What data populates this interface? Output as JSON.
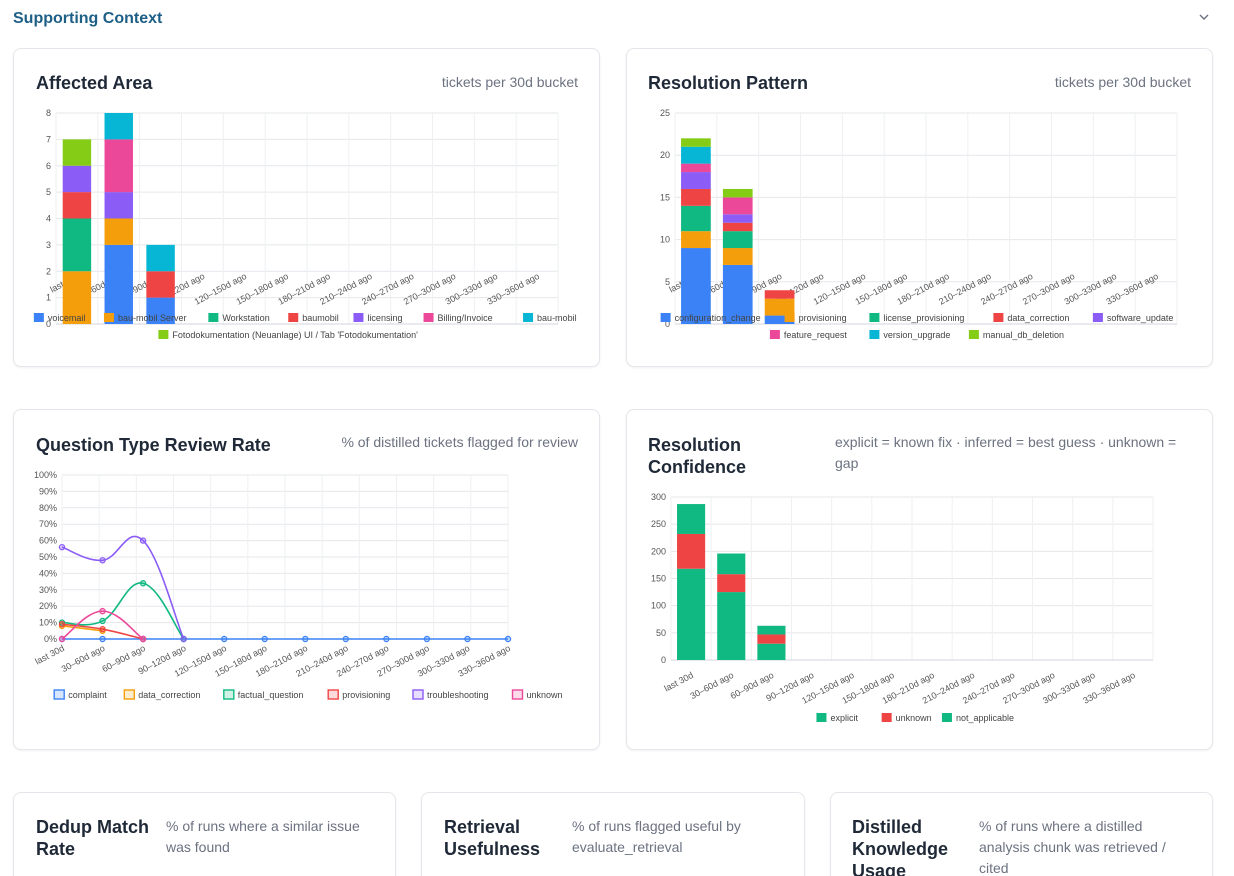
{
  "section": {
    "title": "Supporting Context",
    "toggle_icon": "chevron-down-icon"
  },
  "cards": {
    "affected_area": {
      "title": "Affected Area",
      "subtitle": "tickets per 30d bucket"
    },
    "resolution_pattern": {
      "title": "Resolution Pattern",
      "subtitle": "tickets per 30d bucket"
    },
    "question_type": {
      "title": "Question Type Review Rate",
      "subtitle": "% of distilled tickets flagged for review"
    },
    "resolution_confidence": {
      "title_line1": "Resolution",
      "title_line2": "Confidence",
      "subtitle_line1": "explicit = known fix · inferred = best guess · unknown =",
      "subtitle_line2": "gap"
    },
    "dedup": {
      "title_line1": "Dedup Match",
      "title_line2": "Rate",
      "subtitle_line1": "% of runs where a similar issue",
      "subtitle_line2": "was found"
    },
    "retrieval": {
      "title_line1": "Retrieval",
      "title_line2": "Usefulness",
      "subtitle_line1": "% of runs flagged useful by",
      "subtitle_line2": "evaluate_retrieval"
    },
    "distilled": {
      "title_line1": "Distilled",
      "title_line2": "Knowledge",
      "title_line3": "Usage",
      "subtitle_line1": "% of runs where a distilled",
      "subtitle_line2": "analysis chunk was retrieved /",
      "subtitle_line3": "cited"
    }
  },
  "chart_data": [
    {
      "type": "bar",
      "stacked": true,
      "categories": [
        "last 30d",
        "30–60d ago",
        "60–90d ago",
        "90–120d ago",
        "120–150d ago",
        "150–180d ago",
        "180–210d ago",
        "210–240d ago",
        "240–270d ago",
        "270–300d ago",
        "300–330d ago",
        "330–360d ago"
      ],
      "ylim": [
        0,
        8
      ],
      "yticks": [
        0,
        1,
        2,
        3,
        4,
        5,
        6,
        7,
        8
      ],
      "series": [
        {
          "name": "voicemail",
          "color": "#3b82f6",
          "values": [
            0,
            3,
            1,
            0,
            0,
            0,
            0,
            0,
            0,
            0,
            0,
            0
          ]
        },
        {
          "name": "bau-mobil Server",
          "color": "#f59e0b",
          "values": [
            2,
            1,
            0,
            0,
            0,
            0,
            0,
            0,
            0,
            0,
            0,
            0
          ]
        },
        {
          "name": "Workstation",
          "color": "#10b981",
          "values": [
            2,
            0,
            0,
            0,
            0,
            0,
            0,
            0,
            0,
            0,
            0,
            0
          ]
        },
        {
          "name": "baumobil",
          "color": "#ef4444",
          "values": [
            1,
            0,
            1,
            0,
            0,
            0,
            0,
            0,
            0,
            0,
            0,
            0
          ]
        },
        {
          "name": "licensing",
          "color": "#8b5cf6",
          "values": [
            1,
            1,
            0,
            0,
            0,
            0,
            0,
            0,
            0,
            0,
            0,
            0
          ]
        },
        {
          "name": "Billing/Invoice",
          "color": "#ec4899",
          "values": [
            0,
            2,
            0,
            0,
            0,
            0,
            0,
            0,
            0,
            0,
            0,
            0
          ]
        },
        {
          "name": "bau-mobil",
          "color": "#06b6d4",
          "values": [
            0,
            1,
            1,
            0,
            0,
            0,
            0,
            0,
            0,
            0,
            0,
            0
          ]
        },
        {
          "name": "Fotodokumentation (Neuanlage) UI / Tab 'Fotodokumentation'",
          "color": "#84cc16",
          "values": [
            1,
            0,
            0,
            0,
            0,
            0,
            0,
            0,
            0,
            0,
            0,
            0
          ]
        }
      ]
    },
    {
      "type": "bar",
      "stacked": true,
      "categories": [
        "last 30d",
        "30–60d ago",
        "60–90d ago",
        "90–120d ago",
        "120–150d ago",
        "150–180d ago",
        "180–210d ago",
        "210–240d ago",
        "240–270d ago",
        "270–300d ago",
        "300–330d ago",
        "330–360d ago"
      ],
      "ylim": [
        0,
        25
      ],
      "yticks": [
        0,
        5,
        10,
        15,
        20,
        25
      ],
      "series": [
        {
          "name": "configuration_change",
          "color": "#3b82f6",
          "values": [
            9,
            7,
            1,
            0,
            0,
            0,
            0,
            0,
            0,
            0,
            0,
            0
          ]
        },
        {
          "name": "provisioning",
          "color": "#f59e0b",
          "values": [
            2,
            2,
            2,
            0,
            0,
            0,
            0,
            0,
            0,
            0,
            0,
            0
          ]
        },
        {
          "name": "license_provisioning",
          "color": "#10b981",
          "values": [
            3,
            2,
            0,
            0,
            0,
            0,
            0,
            0,
            0,
            0,
            0,
            0
          ]
        },
        {
          "name": "data_correction",
          "color": "#ef4444",
          "values": [
            2,
            1,
            1,
            0,
            0,
            0,
            0,
            0,
            0,
            0,
            0,
            0
          ]
        },
        {
          "name": "software_update",
          "color": "#8b5cf6",
          "values": [
            2,
            1,
            0,
            0,
            0,
            0,
            0,
            0,
            0,
            0,
            0,
            0
          ]
        },
        {
          "name": "feature_request",
          "color": "#ec4899",
          "values": [
            1,
            2,
            0,
            0,
            0,
            0,
            0,
            0,
            0,
            0,
            0,
            0
          ]
        },
        {
          "name": "version_upgrade",
          "color": "#06b6d4",
          "values": [
            2,
            0,
            0,
            0,
            0,
            0,
            0,
            0,
            0,
            0,
            0,
            0
          ]
        },
        {
          "name": "manual_db_deletion",
          "color": "#84cc16",
          "values": [
            1,
            1,
            0,
            0,
            0,
            0,
            0,
            0,
            0,
            0,
            0,
            0
          ]
        }
      ]
    },
    {
      "type": "line",
      "categories": [
        "last 30d",
        "30–60d ago",
        "60–90d ago",
        "90–120d ago",
        "120–150d ago",
        "150–180d ago",
        "180–210d ago",
        "210–240d ago",
        "240–270d ago",
        "270–300d ago",
        "300–330d ago",
        "330–360d ago"
      ],
      "ylim": [
        0,
        100
      ],
      "yticks": [
        0,
        10,
        20,
        30,
        40,
        50,
        60,
        70,
        80,
        90,
        100
      ],
      "tick_suffix": "%",
      "series": [
        {
          "name": "complaint",
          "color": "#3b82f6",
          "values": [
            0,
            0,
            0,
            0,
            0,
            0,
            0,
            0,
            0,
            0,
            0,
            0
          ]
        },
        {
          "name": "data_correction",
          "color": "#f59e0b",
          "values": [
            8,
            5,
            null,
            null,
            null,
            null,
            null,
            null,
            null,
            null,
            null,
            null
          ]
        },
        {
          "name": "factual_question",
          "color": "#10b981",
          "values": [
            10,
            11,
            34,
            0,
            null,
            null,
            null,
            null,
            null,
            null,
            null,
            null
          ]
        },
        {
          "name": "provisioning",
          "color": "#ef4444",
          "values": [
            9,
            6,
            0,
            null,
            null,
            null,
            null,
            null,
            null,
            null,
            null,
            null
          ]
        },
        {
          "name": "troubleshooting",
          "color": "#8b5cf6",
          "values": [
            56,
            48,
            60,
            0,
            null,
            null,
            null,
            null,
            null,
            null,
            null,
            null
          ]
        },
        {
          "name": "unknown",
          "color": "#ec4899",
          "values": [
            0,
            17,
            0,
            null,
            null,
            null,
            null,
            null,
            null,
            null,
            null,
            null
          ]
        }
      ]
    },
    {
      "type": "bar",
      "stacked": true,
      "categories": [
        "last 30d",
        "30–60d ago",
        "60–90d ago",
        "90–120d ago",
        "120–150d ago",
        "150–180d ago",
        "180–210d ago",
        "210–240d ago",
        "240–270d ago",
        "270–300d ago",
        "300–330d ago",
        "330–360d ago"
      ],
      "ylim": [
        0,
        300
      ],
      "yticks": [
        0,
        50,
        100,
        150,
        200,
        250,
        300
      ],
      "series": [
        {
          "name": "explicit",
          "color": "#10b981",
          "values": [
            168,
            125,
            30,
            0,
            0,
            0,
            0,
            0,
            0,
            0,
            0,
            0
          ]
        },
        {
          "name": "unknown",
          "color": "#ef4444",
          "values": [
            64,
            33,
            17,
            0,
            0,
            0,
            0,
            0,
            0,
            0,
            0,
            0
          ]
        },
        {
          "name": "not_applicable",
          "color": "#10b981",
          "values": [
            55,
            38,
            16,
            0,
            0,
            0,
            0,
            0,
            0,
            0,
            0,
            0
          ]
        }
      ]
    }
  ]
}
